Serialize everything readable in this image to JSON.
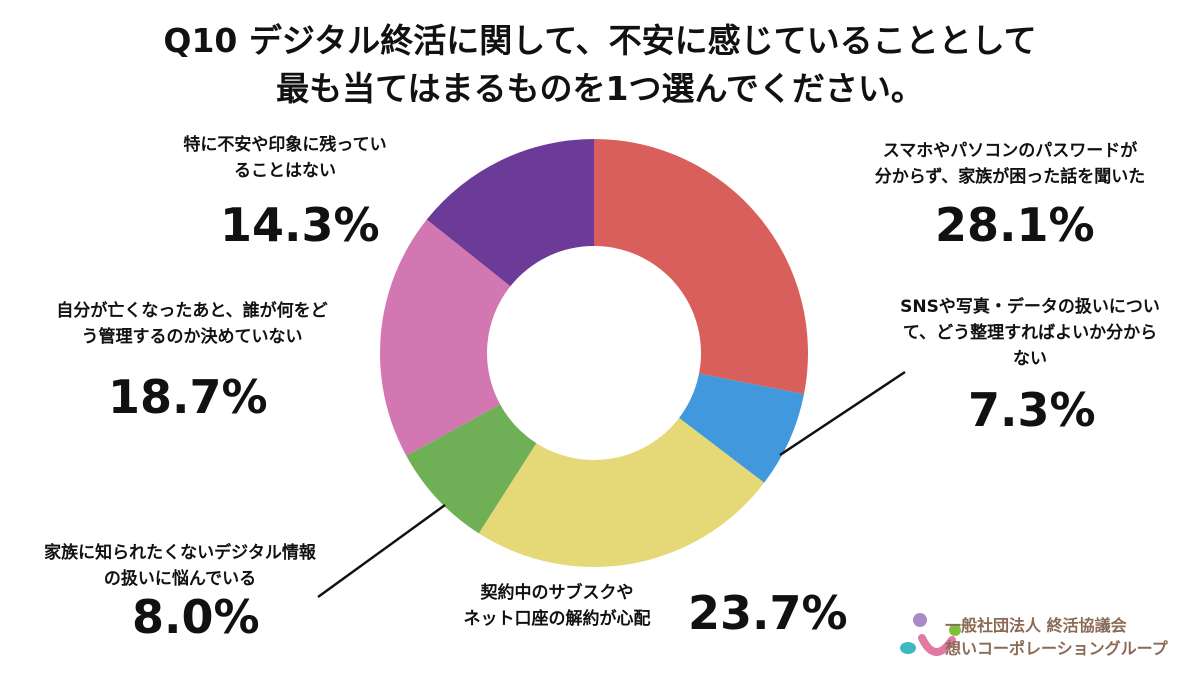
{
  "chart_data": {
    "type": "pie",
    "donut": true,
    "title": [
      "Q10 デジタル終活に関して、不安に感じていることとして",
      "最も当てはまるものを1つ選んでください。"
    ],
    "start": "top",
    "direction": "clockwise",
    "slices": [
      {
        "label": [
          "スマホやパソコンのパスワードが",
          "分からず、家族が困った話を聞いた"
        ],
        "value": 28.1,
        "display": "28.1%",
        "color": "#d95f5c"
      },
      {
        "label": [
          "SNSや写真・データの扱いについ",
          "て、どう整理すればよいか分から",
          "ない"
        ],
        "value": 7.3,
        "display": "7.3%",
        "color": "#4198dc"
      },
      {
        "label": [
          "契約中のサブスクや",
          "ネット口座の解約が心配"
        ],
        "value": 23.7,
        "display": "23.7%",
        "color": "#e4d877"
      },
      {
        "label": [
          "家族に知られたくないデジタル情報",
          "の扱いに悩んでいる"
        ],
        "value": 8.0,
        "display": "8.0%",
        "color": "#6faf56"
      },
      {
        "label": [
          "自分が亡くなったあと、誰が何をど",
          "う管理するのか決めていない"
        ],
        "value": 18.7,
        "display": "18.7%",
        "color": "#d377b3"
      },
      {
        "label": [
          "特に不安や印象に残ってい",
          "ることはない"
        ],
        "value": 14.3,
        "display": "14.3%",
        "color": "#6c3b97"
      }
    ]
  },
  "logo": {
    "line1": "一般社団法人 終活協議会",
    "line2": "想いコーポレーショングループ"
  }
}
